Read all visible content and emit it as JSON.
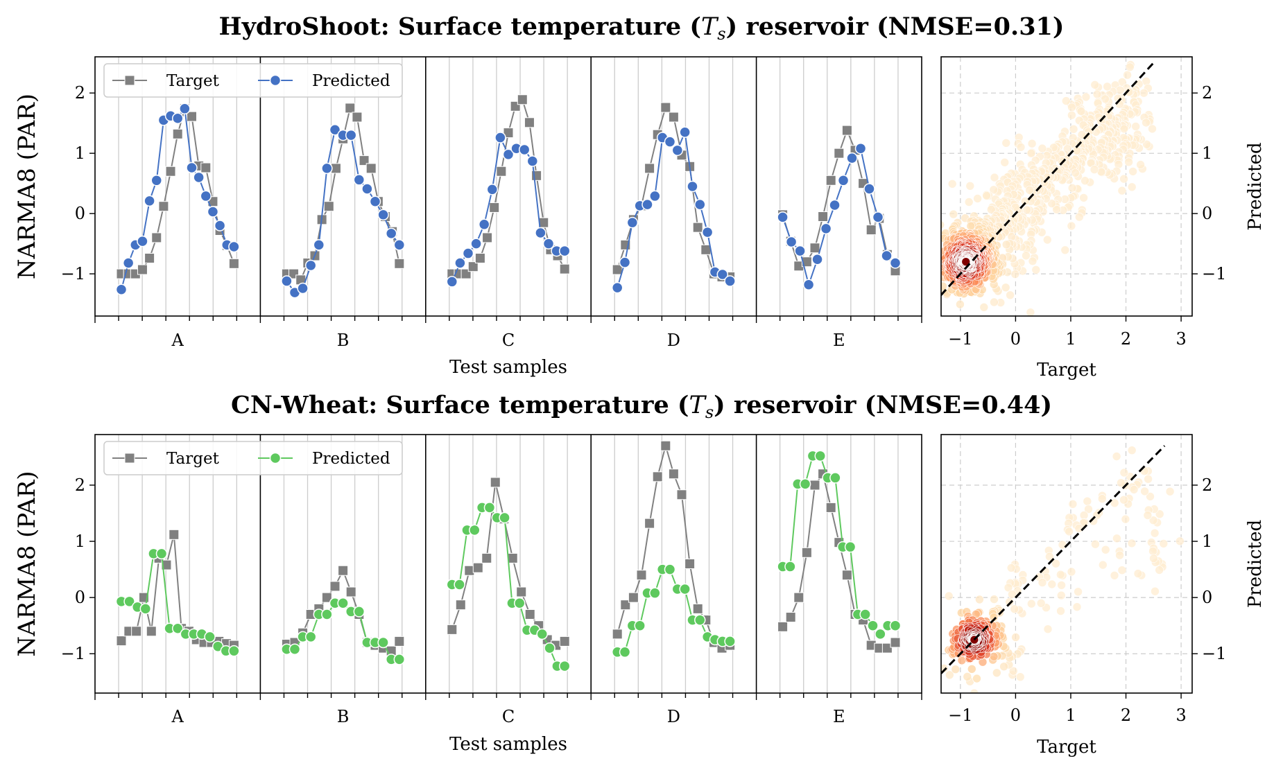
{
  "chart_data": [
    {
      "type": "line",
      "title": "HydroShoot: Surface temperature (T_s) reservoir (NMSE=0.31)",
      "title_parts": {
        "prefix": "HydroShoot: Surface temperature (",
        "symbol": "T",
        "subscript": "s",
        "suffix": ") reservoir (NMSE=0.31)"
      },
      "ylabel": "NARMA8 (PAR)",
      "xlabel": "Test samples",
      "ylim": [
        -1.7,
        2.6
      ],
      "yticks": [
        "−1",
        "0",
        "1",
        "2"
      ],
      "legend": {
        "placement": "top-left",
        "target_label": "Target",
        "predicted_label": "Predicted"
      },
      "colors": {
        "target": "#808080",
        "predicted": "#4472c4"
      },
      "panels": [
        {
          "label": "A",
          "target": [
            -1.0,
            -1.0,
            -1.0,
            -0.93,
            -0.74,
            -0.4,
            0.12,
            0.7,
            1.32,
            1.74,
            1.61,
            0.79,
            0.76,
            0.2,
            -0.28,
            -0.53,
            -0.83
          ],
          "predicted": [
            -1.26,
            -0.82,
            -0.52,
            -0.46,
            0.21,
            0.55,
            1.55,
            1.62,
            1.58,
            1.74,
            0.76,
            0.6,
            0.29,
            0.03,
            -0.2,
            -0.52,
            -0.55
          ]
        },
        {
          "label": "B",
          "target": [
            -1.0,
            -1.0,
            -1.1,
            -0.82,
            -0.7,
            -0.1,
            0.12,
            0.75,
            1.24,
            1.75,
            1.6,
            0.88,
            0.75,
            0.2,
            -0.05,
            -0.3,
            -0.83
          ],
          "predicted": [
            -1.12,
            -1.31,
            -1.24,
            -0.86,
            -0.52,
            0.75,
            1.39,
            1.3,
            1.3,
            0.56,
            0.41,
            0.2,
            -0.02,
            -0.33,
            -0.52
          ]
        },
        {
          "label": "C",
          "target": [
            -1.0,
            -1.0,
            -1.0,
            -0.88,
            -0.74,
            -0.4,
            0.1,
            0.7,
            1.34,
            1.78,
            1.89,
            1.51,
            0.63,
            -0.15,
            -0.6,
            -0.7,
            -0.92
          ],
          "predicted": [
            -1.13,
            -0.82,
            -0.66,
            -0.5,
            -0.18,
            0.4,
            1.26,
            0.98,
            1.08,
            1.06,
            0.87,
            -0.32,
            -0.5,
            -0.62,
            -0.62
          ]
        },
        {
          "label": "D",
          "target": [
            -0.93,
            -0.52,
            -0.1,
            0.13,
            0.75,
            1.31,
            1.76,
            1.6,
            0.97,
            0.78,
            -0.23,
            -0.6,
            -1.0,
            -1.05,
            -1.05
          ],
          "predicted": [
            -1.23,
            -0.81,
            -0.15,
            0.13,
            0.15,
            0.29,
            1.26,
            1.19,
            1.05,
            1.35,
            0.45,
            0.15,
            -0.31,
            -0.97,
            -1.01,
            -1.12
          ]
        },
        {
          "label": "E",
          "target": [
            -0.02,
            -0.46,
            -0.87,
            -0.8,
            -0.57,
            -0.05,
            0.55,
            1.0,
            1.38,
            1.05,
            0.5,
            -0.27,
            -0.08,
            -0.68,
            -0.95
          ],
          "predicted": [
            -0.06,
            -0.47,
            -0.62,
            -1.18,
            -0.76,
            -0.25,
            0.14,
            0.55,
            0.92,
            1.08,
            0.41,
            -0.06,
            -0.7,
            -0.82
          ]
        }
      ],
      "scatter": {
        "xlabel": "Target",
        "ylabel": "Predicted",
        "xlim": [
          -1.35,
          3.2
        ],
        "ylim": [
          -1.7,
          2.6
        ],
        "xticks": [
          "−1",
          "0",
          "1",
          "2",
          "3"
        ],
        "yticks": [
          "−1",
          "0",
          "1",
          "2"
        ],
        "identity_line": {
          "from": [
            -1.2,
            -1.2
          ],
          "to": [
            2.5,
            2.5
          ]
        },
        "points": [
          [
            -0.95,
            -0.85
          ],
          [
            -0.9,
            -0.8
          ],
          [
            -0.85,
            -0.75
          ],
          [
            -0.8,
            -0.7
          ],
          [
            -0.9,
            -0.95
          ],
          [
            -0.7,
            -0.6
          ],
          [
            -0.6,
            -0.4
          ],
          [
            -0.5,
            -0.3
          ],
          [
            -0.3,
            -0.2
          ],
          [
            -0.2,
            0.0
          ],
          [
            0.0,
            0.1
          ],
          [
            0.2,
            0.3
          ],
          [
            0.4,
            0.5
          ],
          [
            0.6,
            0.6
          ],
          [
            0.8,
            0.7
          ],
          [
            1.0,
            0.9
          ],
          [
            1.2,
            1.0
          ],
          [
            1.4,
            1.1
          ],
          [
            1.6,
            1.2
          ],
          [
            1.8,
            1.3
          ],
          [
            2.0,
            1.4
          ],
          [
            2.2,
            1.6
          ],
          [
            0.5,
            0.0
          ],
          [
            1.0,
            0.4
          ],
          [
            1.5,
            0.8
          ],
          [
            2.0,
            1.0
          ],
          [
            -0.5,
            -0.8
          ],
          [
            0.0,
            -0.5
          ],
          [
            1.2,
            1.6
          ],
          [
            1.6,
            1.9
          ],
          [
            2.1,
            2.0
          ],
          [
            -0.3,
            0.4
          ],
          [
            0.3,
            0.9
          ]
        ],
        "cluster": {
          "center": [
            -0.9,
            -0.8
          ],
          "spread": [
            0.9,
            0.7
          ],
          "count": 700
        },
        "colormap": [
          "#fff2dc",
          "#fdd49e",
          "#fc8d59",
          "#d7301f",
          "#7f0000"
        ]
      }
    },
    {
      "type": "line",
      "title": "CN-Wheat: Surface temperature (T_s) reservoir (NMSE=0.44)",
      "title_parts": {
        "prefix": "CN-Wheat: Surface temperature (",
        "symbol": "T",
        "subscript": "s",
        "suffix": ") reservoir (NMSE=0.44)"
      },
      "ylabel": "NARMA8 (PAR)",
      "xlabel": "Test samples",
      "ylim": [
        -1.7,
        2.9
      ],
      "yticks": [
        "−1",
        "0",
        "1",
        "2"
      ],
      "legend": {
        "placement": "top-left",
        "target_label": "Target",
        "predicted_label": "Predicted"
      },
      "colors": {
        "target": "#808080",
        "predicted": "#5ec95e"
      },
      "panels": [
        {
          "label": "A",
          "target": [
            -0.77,
            -0.6,
            -0.6,
            0.0,
            -0.6,
            0.7,
            0.58,
            1.12,
            -0.55,
            -0.6,
            -0.75,
            -0.8,
            -0.8,
            -0.78,
            -0.82,
            -0.85
          ],
          "predicted": [
            -0.07,
            -0.07,
            -0.17,
            -0.2,
            0.78,
            0.78,
            -0.55,
            -0.55,
            -0.65,
            -0.65,
            -0.65,
            -0.7,
            -0.87,
            -0.95,
            -0.95
          ]
        },
        {
          "label": "B",
          "target": [
            -0.83,
            -0.8,
            -0.63,
            -0.3,
            -0.2,
            0.0,
            0.2,
            0.48,
            0.1,
            -0.3,
            -0.8,
            -0.85,
            -0.9,
            -0.95,
            -0.78
          ],
          "predicted": [
            -0.92,
            -0.92,
            -0.7,
            -0.7,
            -0.3,
            -0.3,
            -0.1,
            -0.1,
            -0.25,
            -0.25,
            -0.8,
            -0.8,
            -0.8,
            -1.1,
            -1.1
          ]
        },
        {
          "label": "C",
          "target": [
            -0.57,
            -0.13,
            0.48,
            0.53,
            0.7,
            2.05,
            1.4,
            0.7,
            0.1,
            -0.3,
            -0.5,
            -0.75,
            -0.85,
            -0.78
          ],
          "predicted": [
            0.23,
            0.23,
            1.2,
            1.2,
            1.6,
            1.6,
            1.42,
            1.42,
            -0.1,
            -0.1,
            -0.58,
            -0.58,
            -0.65,
            -0.9,
            -1.22,
            -1.22
          ]
        },
        {
          "label": "D",
          "target": [
            -0.65,
            -0.13,
            0.0,
            0.4,
            1.32,
            2.15,
            2.7,
            2.2,
            1.83,
            0.6,
            -0.2,
            -0.4,
            -0.8,
            -0.9,
            -0.85
          ],
          "predicted": [
            -0.97,
            -0.97,
            -0.5,
            -0.5,
            0.08,
            0.08,
            0.5,
            0.5,
            0.15,
            0.15,
            -0.4,
            -0.4,
            -0.7,
            -0.75,
            -0.78,
            -0.78
          ]
        },
        {
          "label": "E",
          "target": [
            -0.52,
            -0.35,
            0.0,
            0.8,
            2.0,
            2.2,
            1.6,
            0.98,
            0.4,
            -0.3,
            -0.4,
            -0.85,
            -0.9,
            -0.9,
            -0.8
          ],
          "predicted": [
            0.55,
            0.55,
            2.02,
            2.02,
            2.52,
            2.52,
            2.13,
            2.13,
            0.9,
            0.9,
            -0.3,
            -0.3,
            -0.5,
            -0.65,
            -0.5,
            -0.5
          ]
        }
      ],
      "scatter": {
        "xlabel": "Target",
        "ylabel": "Predicted",
        "xlim": [
          -1.35,
          3.2
        ],
        "ylim": [
          -1.7,
          2.9
        ],
        "xticks": [
          "−1",
          "0",
          "1",
          "2",
          "3"
        ],
        "yticks": [
          "−1",
          "0",
          "1",
          "2"
        ],
        "identity_line": {
          "from": [
            -1.2,
            -1.2
          ],
          "to": [
            2.7,
            2.7
          ]
        },
        "points": [
          [
            -0.9,
            -0.85
          ],
          [
            -0.85,
            -0.8
          ],
          [
            -0.8,
            -0.7
          ],
          [
            -0.7,
            -0.6
          ],
          [
            -0.6,
            -0.5
          ],
          [
            -0.5,
            -0.3
          ],
          [
            -0.3,
            -0.1
          ],
          [
            -0.1,
            0.1
          ],
          [
            0.1,
            0.2
          ],
          [
            0.4,
            0.3
          ],
          [
            0.7,
            0.5
          ],
          [
            1.0,
            0.3
          ],
          [
            1.2,
            1.5
          ],
          [
            1.5,
            1.6
          ],
          [
            1.8,
            1.8
          ],
          [
            2.0,
            2.2
          ],
          [
            2.2,
            2.0
          ],
          [
            2.4,
            1.9
          ],
          [
            2.6,
            1.5
          ],
          [
            1.6,
            0.9
          ],
          [
            2.0,
            0.6
          ],
          [
            2.5,
            0.5
          ],
          [
            0.3,
            -0.3
          ],
          [
            -0.3,
            -0.9
          ],
          [
            0.0,
            -1.3
          ],
          [
            -0.8,
            -1.5
          ],
          [
            1.0,
            1.2
          ],
          [
            2.6,
            1.0
          ]
        ],
        "cluster": {
          "center": [
            -0.75,
            -0.75
          ],
          "spread": [
            0.6,
            0.5
          ],
          "count": 260
        },
        "colormap": [
          "#fff2dc",
          "#fdd49e",
          "#fc8d59",
          "#d7301f",
          "#7f0000"
        ]
      }
    }
  ]
}
